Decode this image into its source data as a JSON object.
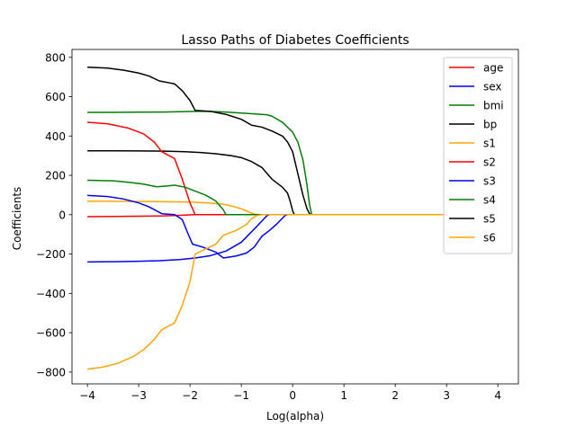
{
  "chart_data": {
    "type": "line",
    "title": "Lasso Paths of Diabetes Coefficients",
    "xlabel": "Log(alpha)",
    "ylabel": "Coefficients",
    "xlim": [
      -4.3,
      4.4
    ],
    "ylim": [
      -860,
      840
    ],
    "xticks": [
      -4,
      -3,
      -2,
      -1,
      0,
      1,
      2,
      3,
      4
    ],
    "xtick_labels": [
      "−4",
      "−3",
      "−2",
      "−1",
      "0",
      "1",
      "2",
      "3",
      "4"
    ],
    "yticks": [
      -800,
      -600,
      -400,
      -200,
      0,
      200,
      400,
      600,
      800
    ],
    "ytick_labels": [
      "−800",
      "−600",
      "−400",
      "−200",
      "0",
      "200",
      "400",
      "600",
      "800"
    ],
    "grid": false,
    "legend_position": "top-right",
    "series": [
      {
        "name": "age",
        "color": "#ff0000",
        "points": [
          [
            -4,
            -10
          ],
          [
            -3.5,
            -9
          ],
          [
            -3,
            -8
          ],
          [
            -2.5,
            -6
          ],
          [
            -2.2,
            -3
          ],
          [
            -1.9,
            0
          ],
          [
            -1.5,
            0
          ],
          [
            0,
            0
          ],
          [
            3,
            0
          ]
        ]
      },
      {
        "name": "sex",
        "color": "#0000ff",
        "points": [
          [
            -4,
            -240
          ],
          [
            -3.5,
            -239
          ],
          [
            -3,
            -237
          ],
          [
            -2.6,
            -234
          ],
          [
            -2.2,
            -228
          ],
          [
            -1.9,
            -220
          ],
          [
            -1.6,
            -208
          ],
          [
            -1.3,
            -185
          ],
          [
            -1.0,
            -140
          ],
          [
            -0.7,
            -60
          ],
          [
            -0.5,
            -5
          ],
          [
            -0.45,
            0
          ],
          [
            0,
            0
          ],
          [
            3,
            0
          ]
        ]
      },
      {
        "name": "bmi",
        "color": "#008000",
        "points": [
          [
            -4,
            520
          ],
          [
            -3.5,
            520
          ],
          [
            -3,
            521
          ],
          [
            -2.5,
            522
          ],
          [
            -2.1,
            524
          ],
          [
            -1.8,
            526
          ],
          [
            -1.5,
            524
          ],
          [
            -1.2,
            520
          ],
          [
            -0.9,
            515
          ],
          [
            -0.5,
            508
          ],
          [
            -0.4,
            500
          ],
          [
            -0.2,
            470
          ],
          [
            0,
            420
          ],
          [
            0.1,
            370
          ],
          [
            0.2,
            280
          ],
          [
            0.28,
            150
          ],
          [
            0.33,
            50
          ],
          [
            0.37,
            3
          ],
          [
            0.4,
            0
          ],
          [
            3,
            0
          ]
        ]
      },
      {
        "name": "bp",
        "color": "#000000",
        "points": [
          [
            -4,
            325
          ],
          [
            -3.5,
            325
          ],
          [
            -3,
            324
          ],
          [
            -2.5,
            323
          ],
          [
            -2.1,
            320
          ],
          [
            -1.8,
            316
          ],
          [
            -1.5,
            310
          ],
          [
            -1.2,
            300
          ],
          [
            -1.0,
            290
          ],
          [
            -0.8,
            270
          ],
          [
            -0.6,
            240
          ],
          [
            -0.5,
            210
          ],
          [
            -0.4,
            180
          ],
          [
            -0.3,
            160
          ],
          [
            -0.2,
            140
          ],
          [
            -0.1,
            110
          ],
          [
            -0.05,
            70
          ],
          [
            0,
            20
          ],
          [
            0.03,
            2
          ],
          [
            0.05,
            0
          ],
          [
            3,
            0
          ]
        ]
      },
      {
        "name": "s1",
        "color": "#ffa500",
        "points": [
          [
            -4,
            68
          ],
          [
            -3.5,
            68
          ],
          [
            -3,
            67
          ],
          [
            -2.5,
            66
          ],
          [
            -2,
            64
          ],
          [
            -1.7,
            60
          ],
          [
            -1.4,
            55
          ],
          [
            -1.2,
            45
          ],
          [
            -1.0,
            30
          ],
          [
            -0.8,
            8
          ],
          [
            -0.7,
            0
          ],
          [
            0,
            0
          ],
          [
            3,
            0
          ]
        ]
      },
      {
        "name": "s2",
        "color": "#ff0000",
        "points": [
          [
            -4,
            470
          ],
          [
            -3.6,
            462
          ],
          [
            -3.2,
            440
          ],
          [
            -2.9,
            410
          ],
          [
            -2.7,
            370
          ],
          [
            -2.55,
            320
          ],
          [
            -2.3,
            285
          ],
          [
            -2.15,
            180
          ],
          [
            -2.0,
            60
          ],
          [
            -1.9,
            0
          ],
          [
            -1.5,
            0
          ],
          [
            0,
            0
          ],
          [
            3,
            0
          ]
        ]
      },
      {
        "name": "s3",
        "color": "#0000ff",
        "points": [
          [
            -4,
            98
          ],
          [
            -3.6,
            92
          ],
          [
            -3.3,
            80
          ],
          [
            -3.0,
            60
          ],
          [
            -2.8,
            40
          ],
          [
            -2.55,
            5
          ],
          [
            -2.3,
            0
          ],
          [
            -2.15,
            -25
          ],
          [
            -2.05,
            -90
          ],
          [
            -1.95,
            -150
          ],
          [
            -1.75,
            -165
          ],
          [
            -1.5,
            -190
          ],
          [
            -1.35,
            -220
          ],
          [
            -1.1,
            -210
          ],
          [
            -0.9,
            -195
          ],
          [
            -0.75,
            -165
          ],
          [
            -0.6,
            -110
          ],
          [
            -0.45,
            -80
          ],
          [
            -0.3,
            -45
          ],
          [
            -0.15,
            -5
          ],
          [
            -0.1,
            0
          ],
          [
            3,
            0
          ]
        ]
      },
      {
        "name": "s4",
        "color": "#008000",
        "points": [
          [
            -4,
            175
          ],
          [
            -3.5,
            172
          ],
          [
            -3.2,
            165
          ],
          [
            -2.9,
            155
          ],
          [
            -2.65,
            142
          ],
          [
            -2.5,
            145
          ],
          [
            -2.3,
            150
          ],
          [
            -2.1,
            140
          ],
          [
            -1.9,
            120
          ],
          [
            -1.7,
            100
          ],
          [
            -1.5,
            70
          ],
          [
            -1.35,
            25
          ],
          [
            -1.3,
            0
          ],
          [
            0,
            0
          ],
          [
            3,
            0
          ]
        ]
      },
      {
        "name": "s5",
        "color": "#000000",
        "points": [
          [
            -4,
            750
          ],
          [
            -3.6,
            745
          ],
          [
            -3.3,
            735
          ],
          [
            -3.0,
            720
          ],
          [
            -2.8,
            705
          ],
          [
            -2.6,
            680
          ],
          [
            -2.4,
            670
          ],
          [
            -2.3,
            665
          ],
          [
            -2.15,
            630
          ],
          [
            -2.0,
            580
          ],
          [
            -1.9,
            530
          ],
          [
            -1.6,
            525
          ],
          [
            -1.3,
            510
          ],
          [
            -1.0,
            485
          ],
          [
            -0.8,
            455
          ],
          [
            -0.6,
            445
          ],
          [
            -0.4,
            425
          ],
          [
            -0.2,
            400
          ],
          [
            -0.1,
            370
          ],
          [
            0,
            320
          ],
          [
            0.1,
            210
          ],
          [
            0.2,
            100
          ],
          [
            0.28,
            30
          ],
          [
            0.33,
            5
          ],
          [
            0.36,
            0
          ],
          [
            3,
            0
          ]
        ]
      },
      {
        "name": "s6",
        "color": "#ffa500",
        "points": [
          [
            -4,
            -785
          ],
          [
            -3.7,
            -775
          ],
          [
            -3.4,
            -755
          ],
          [
            -3.1,
            -720
          ],
          [
            -2.9,
            -685
          ],
          [
            -2.7,
            -635
          ],
          [
            -2.55,
            -585
          ],
          [
            -2.3,
            -550
          ],
          [
            -2.15,
            -460
          ],
          [
            -2.0,
            -340
          ],
          [
            -1.9,
            -200
          ],
          [
            -1.7,
            -175
          ],
          [
            -1.5,
            -150
          ],
          [
            -1.35,
            -105
          ],
          [
            -1.1,
            -80
          ],
          [
            -0.9,
            -50
          ],
          [
            -0.8,
            -20
          ],
          [
            -0.7,
            -5
          ],
          [
            -0.6,
            0
          ],
          [
            0,
            0
          ],
          [
            3,
            0
          ]
        ]
      }
    ]
  }
}
